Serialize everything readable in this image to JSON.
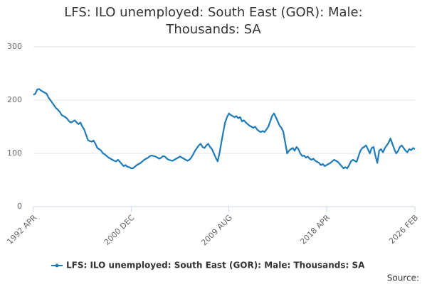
{
  "chart_data": {
    "type": "line",
    "title": "LFS: ILO unemployed: South East (GOR): Male: Thousands: SA",
    "source": "Source:",
    "categories": [
      "1992 APR",
      null,
      null,
      null,
      null,
      null,
      null,
      null,
      null,
      null,
      null,
      null,
      null,
      null,
      null,
      null,
      null,
      null,
      null,
      null,
      null,
      null,
      null,
      null,
      null,
      null,
      null,
      null,
      null,
      null,
      null,
      null,
      null,
      null,
      null,
      null,
      null,
      null,
      null,
      null,
      null,
      null,
      null,
      null,
      null,
      null,
      null,
      null,
      null,
      null,
      null,
      null,
      "2000 DEC",
      null,
      null,
      null,
      null,
      null,
      null,
      null,
      null,
      null,
      null,
      null,
      null,
      null,
      null,
      null,
      null,
      null,
      null,
      null,
      null,
      null,
      null,
      null,
      null,
      null,
      null,
      null,
      null,
      null,
      null,
      null,
      null,
      null,
      null,
      null,
      null,
      null,
      null,
      null,
      null,
      null,
      null,
      null,
      null,
      null,
      null,
      null,
      null,
      null,
      null,
      null,
      "2009 AUG",
      null,
      null,
      null,
      null,
      null,
      null,
      null,
      null,
      null,
      null,
      null,
      null,
      null,
      null,
      null,
      null,
      null,
      null,
      null,
      null,
      null,
      null,
      null,
      null,
      null,
      null,
      null,
      null,
      null,
      null,
      null,
      null,
      null,
      null,
      null,
      null,
      null,
      null,
      null,
      null,
      null,
      null,
      null,
      null,
      null,
      null,
      null,
      null,
      null,
      null,
      null,
      "2018 APR",
      null,
      null,
      null,
      null,
      null,
      null,
      null,
      null,
      null,
      null,
      null,
      null,
      null,
      null,
      null,
      null,
      null,
      null,
      null,
      null,
      null,
      null,
      null,
      null,
      null,
      null,
      null,
      null,
      null,
      null,
      null,
      null,
      null,
      null,
      null,
      null,
      null,
      null,
      null,
      null,
      null,
      null,
      null,
      null,
      null,
      null,
      "2026 FEB"
    ],
    "series": [
      {
        "name": "LFS: ILO unemployed: South East (GOR): Male: Thousands: SA",
        "color": "#1f7cb8",
        "values": [
          210,
          212,
          220,
          221,
          218,
          216,
          214,
          212,
          205,
          200,
          195,
          190,
          185,
          182,
          178,
          172,
          170,
          168,
          165,
          160,
          158,
          160,
          162,
          158,
          155,
          158,
          150,
          145,
          135,
          125,
          123,
          122,
          124,
          118,
          110,
          108,
          105,
          100,
          98,
          95,
          92,
          90,
          88,
          86,
          85,
          88,
          84,
          80,
          76,
          78,
          75,
          74,
          72,
          72,
          75,
          78,
          80,
          82,
          85,
          88,
          90,
          92,
          95,
          96,
          95,
          94,
          92,
          90,
          92,
          95,
          94,
          90,
          88,
          87,
          86,
          88,
          90,
          92,
          94,
          92,
          90,
          88,
          86,
          88,
          92,
          98,
          105,
          110,
          115,
          118,
          112,
          110,
          115,
          118,
          112,
          108,
          100,
          92,
          85,
          100,
          120,
          140,
          158,
          168,
          175,
          172,
          170,
          168,
          170,
          166,
          168,
          160,
          162,
          158,
          155,
          152,
          150,
          148,
          150,
          145,
          142,
          140,
          142,
          140,
          145,
          150,
          160,
          170,
          175,
          168,
          160,
          152,
          148,
          140,
          120,
          100,
          105,
          108,
          110,
          105,
          112,
          108,
          100,
          95,
          96,
          92,
          94,
          90,
          88,
          90,
          86,
          84,
          82,
          78,
          80,
          76,
          78,
          80,
          82,
          85,
          88,
          86,
          84,
          80,
          76,
          72,
          74,
          72,
          78,
          85,
          88,
          86,
          84,
          95,
          105,
          110,
          112,
          115,
          108,
          100,
          110,
          112,
          95,
          82,
          105,
          108,
          102,
          110,
          115,
          120,
          128,
          118,
          108,
          100,
          104,
          112,
          115,
          110,
          105,
          102,
          108,
          106,
          110,
          108
        ]
      }
    ],
    "ylim": [
      0,
      300
    ],
    "yticks": [
      0,
      100,
      200,
      300
    ],
    "grid": true
  }
}
